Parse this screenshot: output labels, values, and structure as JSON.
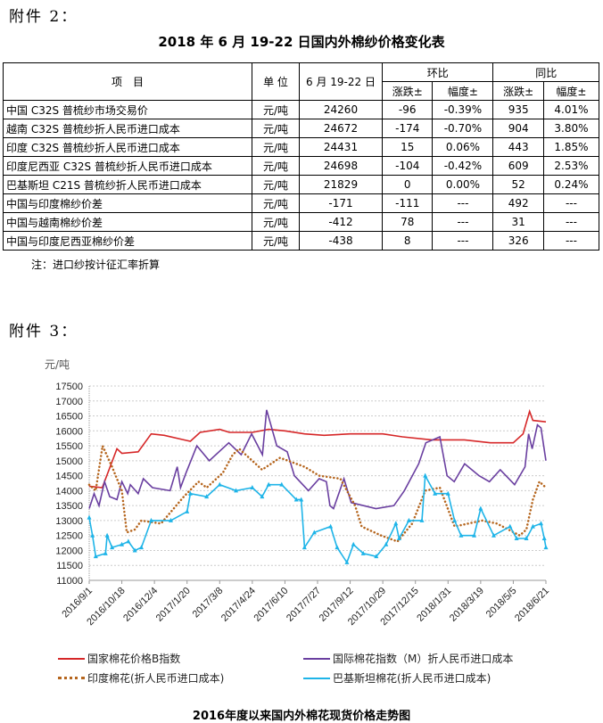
{
  "attachment2": "附件 2：",
  "table_title": "2018 年 6 月 19-22 日国内外棉纱价格变化表",
  "table": {
    "headers": {
      "item": "项　目",
      "unit": "单 位",
      "period": "6 月 19-22 日",
      "mom": "环比",
      "yoy": "同比",
      "change": "涨跌±",
      "pct": "幅度±"
    },
    "rows": [
      [
        "中国 C32S 普梳纱市场交易价",
        "元/吨",
        "24260",
        "-96",
        "-0.39%",
        "935",
        "4.01%"
      ],
      [
        "越南 C32S 普梳纱折人民币进口成本",
        "元/吨",
        "24672",
        "-174",
        "-0.70%",
        "904",
        "3.80%"
      ],
      [
        "印度 C32S 普梳纱折人民币进口成本",
        "元/吨",
        "24431",
        "15",
        "0.06%",
        "443",
        "1.85%"
      ],
      [
        "印度尼西亚 C32S 普梳纱折人民币进口成本",
        "元/吨",
        "24698",
        "-104",
        "-0.42%",
        "609",
        "2.53%"
      ],
      [
        "巴基斯坦 C21S 普梳纱折人民币进口成本",
        "元/吨",
        "21829",
        "0",
        "0.00%",
        "52",
        "0.24%"
      ],
      [
        "中国与印度棉纱价差",
        "元/吨",
        "-171",
        "-111",
        "---",
        "492",
        "---"
      ],
      [
        "中国与越南棉纱价差",
        "元/吨",
        "-412",
        "78",
        "---",
        "31",
        "---"
      ],
      [
        "中国与印度尼西亚棉纱价差",
        "元/吨",
        "-438",
        "8",
        "---",
        "326",
        "---"
      ]
    ]
  },
  "note": "注：进口纱按计征汇率折算",
  "attachment3": "附件 3：",
  "chart_data": {
    "type": "line",
    "title": "2016年度以来国内外棉花现货价格走势图",
    "ylabel": "元/吨",
    "ylim": [
      11000,
      17500
    ],
    "yticks": [
      11000,
      11500,
      12000,
      12500,
      13000,
      13500,
      14000,
      14500,
      15000,
      15500,
      16000,
      16500,
      17000,
      17500
    ],
    "xlabel_unit": "days since 2016/9/1",
    "xticks": [
      "2016/9/1",
      "2016/10/18",
      "2016/12/4",
      "2017/1/20",
      "2017/3/8",
      "2017/4/24",
      "2017/6/10",
      "2017/7/27",
      "2017/9/12",
      "2017/10/29",
      "2017/12/15",
      "2018/1/31",
      "2018/3/19",
      "2018/5/5",
      "2018/6/21"
    ],
    "xtick_interval_days": 47,
    "grid": true,
    "legend_position": "bottom",
    "series": [
      {
        "name": "国家棉花价格B指数",
        "color": "#d62728",
        "style": "solid",
        "points": [
          [
            0,
            14150
          ],
          [
            0.4,
            14100
          ],
          [
            0.85,
            15400
          ],
          [
            1,
            15250
          ],
          [
            1.5,
            15300
          ],
          [
            1.9,
            15900
          ],
          [
            2.3,
            15850
          ],
          [
            2.9,
            15700
          ],
          [
            3.1,
            15650
          ],
          [
            3.4,
            15950
          ],
          [
            4,
            16050
          ],
          [
            4.3,
            15950
          ],
          [
            5,
            15950
          ],
          [
            5.5,
            16050
          ],
          [
            6,
            16000
          ],
          [
            6.6,
            15900
          ],
          [
            7.2,
            15850
          ],
          [
            8,
            15900
          ],
          [
            9,
            15900
          ],
          [
            9.6,
            15800
          ],
          [
            10.5,
            15700
          ],
          [
            11.5,
            15700
          ],
          [
            12.3,
            15600
          ],
          [
            13,
            15600
          ],
          [
            13.3,
            15900
          ],
          [
            13.5,
            16650
          ],
          [
            13.6,
            16350
          ],
          [
            14,
            16300
          ]
        ]
      },
      {
        "name": "国际棉花指数（M）折人民币进口成本",
        "color": "#6a3fa0",
        "style": "solid",
        "points": [
          [
            0,
            13400
          ],
          [
            0.15,
            13900
          ],
          [
            0.3,
            13500
          ],
          [
            0.47,
            14300
          ],
          [
            0.63,
            13800
          ],
          [
            0.85,
            13700
          ],
          [
            1,
            14300
          ],
          [
            1.18,
            13900
          ],
          [
            1.26,
            14200
          ],
          [
            1.5,
            13900
          ],
          [
            1.66,
            14400
          ],
          [
            1.94,
            14100
          ],
          [
            2.48,
            14000
          ],
          [
            2.7,
            14800
          ],
          [
            2.8,
            14100
          ],
          [
            2.97,
            14600
          ],
          [
            3.3,
            15500
          ],
          [
            3.68,
            15000
          ],
          [
            4.28,
            15600
          ],
          [
            4.66,
            15200
          ],
          [
            4.98,
            15900
          ],
          [
            5.31,
            15200
          ],
          [
            5.44,
            16700
          ],
          [
            5.75,
            15500
          ],
          [
            6.07,
            15300
          ],
          [
            6.29,
            14500
          ],
          [
            6.72,
            14000
          ],
          [
            7.05,
            14400
          ],
          [
            7.27,
            14300
          ],
          [
            7.38,
            13500
          ],
          [
            7.49,
            13400
          ],
          [
            7.81,
            14400
          ],
          [
            8.03,
            13600
          ],
          [
            8.79,
            13400
          ],
          [
            9.34,
            13500
          ],
          [
            9.66,
            14000
          ],
          [
            10.1,
            14900
          ],
          [
            10.32,
            15600
          ],
          [
            10.75,
            15800
          ],
          [
            10.97,
            14500
          ],
          [
            11.19,
            14300
          ],
          [
            11.51,
            14900
          ],
          [
            11.95,
            14500
          ],
          [
            12.27,
            14300
          ],
          [
            12.6,
            14700
          ],
          [
            13.04,
            14200
          ],
          [
            13.36,
            14800
          ],
          [
            13.47,
            15900
          ],
          [
            13.58,
            15400
          ],
          [
            13.74,
            16200
          ],
          [
            13.85,
            16100
          ],
          [
            14,
            15000
          ]
        ]
      },
      {
        "name": "印度棉花(折人民币进口成本)",
        "color": "#b5651d",
        "style": "dotted",
        "points": [
          [
            0,
            14200
          ],
          [
            0.2,
            14000
          ],
          [
            0.41,
            15500
          ],
          [
            0.7,
            14800
          ],
          [
            1,
            14000
          ],
          [
            1.15,
            12600
          ],
          [
            1.4,
            12700
          ],
          [
            1.6,
            13000
          ],
          [
            2.2,
            12900
          ],
          [
            2.9,
            13800
          ],
          [
            3.35,
            14300
          ],
          [
            3.6,
            14100
          ],
          [
            4.1,
            14600
          ],
          [
            4.4,
            15200
          ],
          [
            4.6,
            15400
          ],
          [
            5.3,
            14700
          ],
          [
            5.85,
            15100
          ],
          [
            6.6,
            14800
          ],
          [
            7.05,
            14500
          ],
          [
            7.7,
            14400
          ],
          [
            8.15,
            13500
          ],
          [
            8.35,
            12800
          ],
          [
            8.95,
            12500
          ],
          [
            9.45,
            12300
          ],
          [
            9.9,
            12900
          ],
          [
            10.3,
            14000
          ],
          [
            10.75,
            14100
          ],
          [
            11.2,
            12800
          ],
          [
            12.05,
            13000
          ],
          [
            12.5,
            12900
          ],
          [
            13.2,
            12500
          ],
          [
            13.4,
            12700
          ],
          [
            13.6,
            13700
          ],
          [
            13.8,
            14300
          ],
          [
            14,
            14100
          ]
        ]
      },
      {
        "name": "巴基斯坦棉花(折人民币进口成本)",
        "color": "#1eb4e8",
        "style": "solid-triangle",
        "points": [
          [
            0,
            13100
          ],
          [
            0.1,
            12500
          ],
          [
            0.2,
            11800
          ],
          [
            0.5,
            11900
          ],
          [
            0.55,
            12500
          ],
          [
            0.7,
            12100
          ],
          [
            1,
            12200
          ],
          [
            1.2,
            12300
          ],
          [
            1.4,
            12000
          ],
          [
            1.6,
            12100
          ],
          [
            1.9,
            13000
          ],
          [
            2.5,
            13000
          ],
          [
            3,
            13300
          ],
          [
            3.1,
            13900
          ],
          [
            3.6,
            13800
          ],
          [
            4,
            14200
          ],
          [
            4.5,
            14000
          ],
          [
            5,
            14100
          ],
          [
            5.3,
            13800
          ],
          [
            5.5,
            14200
          ],
          [
            5.9,
            14200
          ],
          [
            6.35,
            13700
          ],
          [
            6.5,
            13700
          ],
          [
            6.6,
            12100
          ],
          [
            6.9,
            12600
          ],
          [
            7.4,
            12800
          ],
          [
            7.6,
            12100
          ],
          [
            7.9,
            11600
          ],
          [
            8.1,
            12200
          ],
          [
            8.4,
            11900
          ],
          [
            8.8,
            11800
          ],
          [
            9.1,
            12200
          ],
          [
            9.4,
            12900
          ],
          [
            9.5,
            12400
          ],
          [
            9.8,
            13000
          ],
          [
            10.2,
            13000
          ],
          [
            10.3,
            14500
          ],
          [
            10.6,
            13900
          ],
          [
            11,
            13900
          ],
          [
            11.2,
            13000
          ],
          [
            11.4,
            12500
          ],
          [
            11.8,
            12500
          ],
          [
            12,
            13400
          ],
          [
            12.4,
            12500
          ],
          [
            12.9,
            12800
          ],
          [
            13.1,
            12400
          ],
          [
            13.4,
            12400
          ],
          [
            13.6,
            12800
          ],
          [
            13.85,
            12900
          ],
          [
            13.95,
            12400
          ],
          [
            14,
            12100
          ]
        ]
      }
    ]
  }
}
